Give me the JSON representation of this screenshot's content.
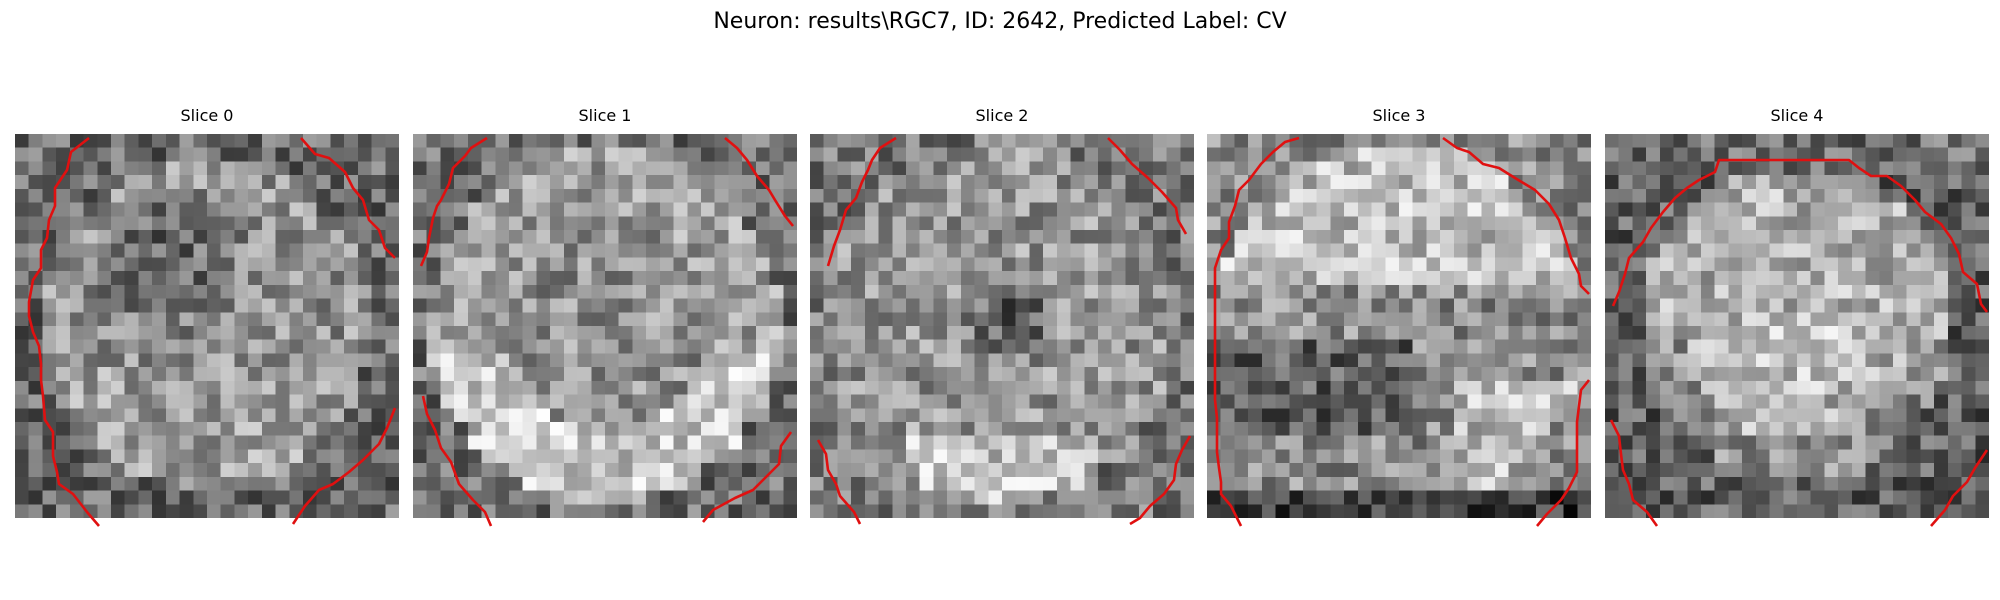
{
  "figure": {
    "title": "Neuron: results\\RGC7, ID: 2642, Predicted Label: CV",
    "contour_color": "#e01010",
    "colormap": "gray"
  },
  "slices": [
    {
      "label": "Slice 0",
      "texture": "dark-center"
    },
    {
      "label": "Slice 1",
      "texture": "bright-lower-ring"
    },
    {
      "label": "Slice 2",
      "texture": "dark-spot-center"
    },
    {
      "label": "Slice 3",
      "texture": "bright-top-ring"
    },
    {
      "label": "Slice 4",
      "texture": "bright-center-dark-rim"
    }
  ]
}
